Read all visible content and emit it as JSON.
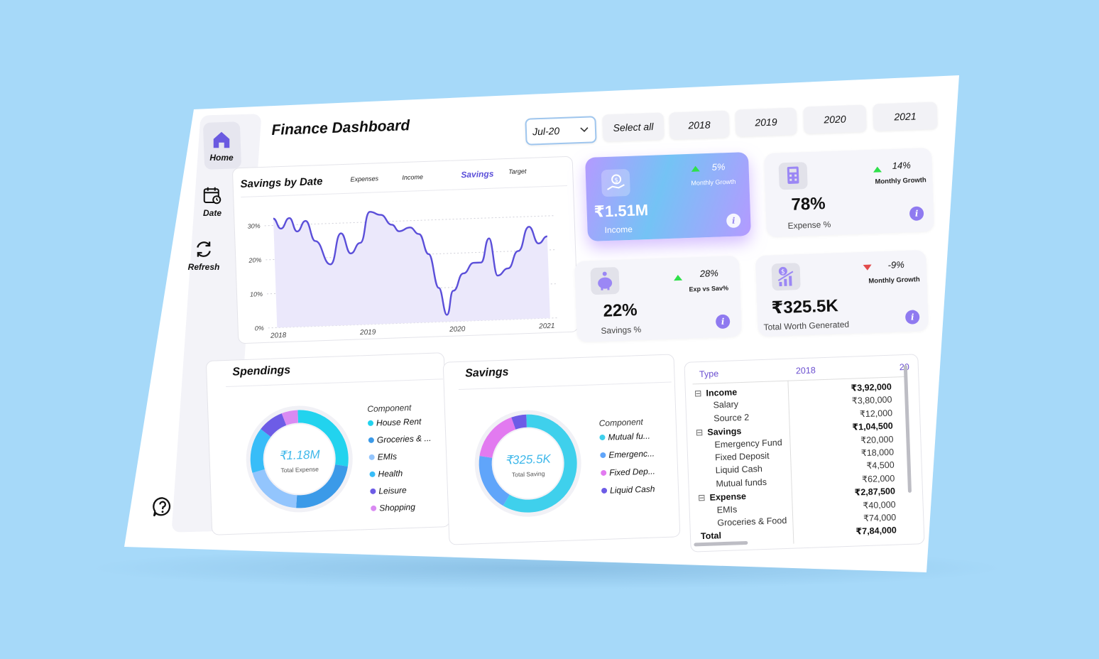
{
  "nav": [
    {
      "label": "Home",
      "icon": "home-icon"
    },
    {
      "label": "Date",
      "icon": "calendar-icon"
    },
    {
      "label": "Refresh",
      "icon": "refresh-icon"
    }
  ],
  "help_icon": "help-icon",
  "title": "Finance Dashboard",
  "filters": {
    "dropdown_value": "Jul-20",
    "select_all": "Select all",
    "years": [
      "2018",
      "2019",
      "2020",
      "2021"
    ]
  },
  "savings_chart": {
    "title": "Savings by Date",
    "tabs": [
      "Expenses",
      "Income",
      "Savings",
      "Target"
    ],
    "active_tab": "Savings",
    "accent": "#5b4fd9"
  },
  "kpis": {
    "income": {
      "value": "₹1.51M",
      "label": "Income",
      "growth": "5%",
      "growth_label": "Monthly Growth"
    },
    "expense": {
      "value": "78%",
      "label": "Expense %",
      "growth": "14%",
      "growth_label": "Monthly Growth"
    },
    "savings": {
      "value": "22%",
      "label": "Savings %",
      "growth": "28%",
      "growth_label": "Exp vs Sav%"
    },
    "worth": {
      "value": "₹325.5K",
      "label": "Total Worth Generated",
      "growth": "-9%",
      "growth_label": "Monthly Growth"
    }
  },
  "spendings": {
    "title": "Spendings",
    "center_value": "₹1.18M",
    "center_label": "Total Expense",
    "legend_title": "Component",
    "legend": [
      {
        "label": "House Rent",
        "color": "#22d3ee"
      },
      {
        "label": "Groceries & ...",
        "color": "#3b9ae8"
      },
      {
        "label": "EMIs",
        "color": "#93c5fd"
      },
      {
        "label": "Health",
        "color": "#38bdf8"
      },
      {
        "label": "Leisure",
        "color": "#6d5ce6"
      },
      {
        "label": "Shopping",
        "color": "#d98af2"
      }
    ]
  },
  "savings_donut": {
    "title": "Savings",
    "center_value": "₹325.5K",
    "center_label": "Total Saving",
    "legend_title": "Component",
    "legend": [
      {
        "label": "Mutual fu...",
        "color": "#3fd0ec"
      },
      {
        "label": "Emergenc...",
        "color": "#60a5fa"
      },
      {
        "label": "Fixed Dep...",
        "color": "#e27af0"
      },
      {
        "label": "Liquid Cash",
        "color": "#6d5ce6"
      }
    ]
  },
  "table": {
    "col_type": "Type",
    "col_year": "2018",
    "col_next": "20",
    "rows": [
      {
        "label": "Income",
        "value": "₹3,92,000",
        "level": 0,
        "bold": true
      },
      {
        "label": "Salary",
        "value": "₹3,80,000",
        "level": 1,
        "bold": false
      },
      {
        "label": "Source 2",
        "value": "₹12,000",
        "level": 1,
        "bold": false
      },
      {
        "label": "Savings",
        "value": "₹1,04,500",
        "level": 0,
        "bold": true
      },
      {
        "label": "Emergency Fund",
        "value": "₹20,000",
        "level": 1,
        "bold": false
      },
      {
        "label": "Fixed Deposit",
        "value": "₹18,000",
        "level": 1,
        "bold": false
      },
      {
        "label": "Liquid Cash",
        "value": "₹4,500",
        "level": 1,
        "bold": false
      },
      {
        "label": "Mutual funds",
        "value": "₹62,000",
        "level": 1,
        "bold": false
      },
      {
        "label": "Expense",
        "value": "₹2,87,500",
        "level": 0,
        "bold": true
      },
      {
        "label": "EMIs",
        "value": "₹40,000",
        "level": 1,
        "bold": false
      },
      {
        "label": "Groceries & Food",
        "value": "₹74,000",
        "level": 1,
        "bold": false
      },
      {
        "label": "Total",
        "value": "₹7,84,000",
        "level": 2,
        "bold": true
      }
    ]
  },
  "chart_data": [
    {
      "type": "area",
      "title": "Savings by Date",
      "x_ticks": [
        "2018",
        "2019",
        "2020",
        "2021"
      ],
      "y_ticks": [
        "0%",
        "10%",
        "20%",
        "30%"
      ],
      "ylim": [
        0,
        35
      ],
      "xlim": [
        2018.0,
        2021.25
      ],
      "x": [
        2018.1,
        2018.18,
        2018.28,
        2018.36,
        2018.46,
        2018.56,
        2018.72,
        2018.85,
        2018.95,
        2019.06,
        2019.18,
        2019.3,
        2019.42,
        2019.5,
        2019.62,
        2019.72,
        2019.82,
        2019.92,
        2020.0,
        2020.08,
        2020.2,
        2020.32,
        2020.4,
        2020.5,
        2020.58,
        2020.7,
        2020.82,
        2020.95,
        2021.05,
        2021.15
      ],
      "series": [
        {
          "values": [
            32,
            29,
            32,
            28,
            31,
            25,
            18,
            27,
            21,
            24,
            33,
            32,
            29,
            27,
            28,
            26,
            20,
            10,
            2,
            9,
            14,
            17,
            17,
            24,
            13,
            15,
            20,
            27,
            22,
            24
          ]
        }
      ]
    },
    {
      "type": "pie",
      "title": "Spendings",
      "labels": [
        "House Rent",
        "Groceries & ...",
        "EMIs",
        "Health",
        "Leisure",
        "Shopping"
      ],
      "values": [
        26,
        22,
        18,
        14,
        8,
        5
      ]
    },
    {
      "type": "pie",
      "title": "Savings",
      "labels": [
        "Mutual fu...",
        "Emergenc...",
        "Fixed Dep...",
        "Liquid Cash"
      ],
      "values": [
        59,
        19,
        17,
        5
      ]
    }
  ]
}
